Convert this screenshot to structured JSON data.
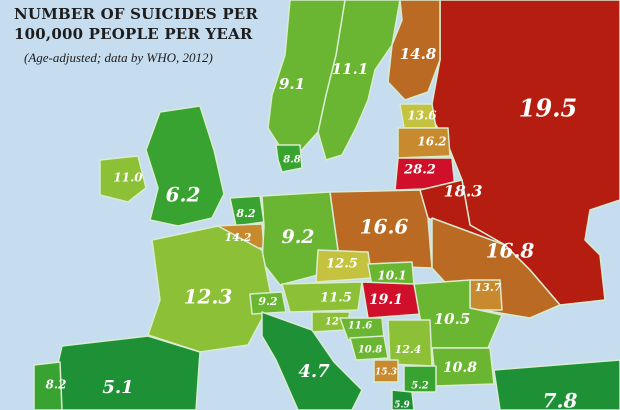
{
  "title": {
    "line1": "NUMBER OF SUICIDES PER",
    "line2": "100,000 PEOPLE PER YEAR",
    "subtitle": "(Age-adjusted; data by WHO, 2012)"
  },
  "colors": {
    "sea": "#c6dcef",
    "border": "#d9ecd0",
    "very_high": "#b51d10",
    "high": "#d0102a",
    "upper": "#ba6a22",
    "mid_upper": "#c88a2e",
    "mid": "#c4c23e",
    "mid_low": "#8cc036",
    "low": "#6ab532",
    "lower": "#38a330",
    "lowest": "#1e9036",
    "gray_land": "#b7b4a6"
  },
  "regions": [
    {
      "name": "Russia",
      "value": "19.5",
      "band": "very_high"
    },
    {
      "name": "Finland",
      "value": "14.8",
      "band": "upper"
    },
    {
      "name": "Sweden",
      "value": "11.1",
      "band": "low"
    },
    {
      "name": "Norway",
      "value": "9.1",
      "band": "low"
    },
    {
      "name": "Estonia",
      "value": "13.6",
      "band": "mid"
    },
    {
      "name": "Latvia",
      "value": "16.2",
      "band": "mid_upper"
    },
    {
      "name": "Lithuania",
      "value": "28.2",
      "band": "high"
    },
    {
      "name": "Belarus",
      "value": "18.3",
      "band": "very_high"
    },
    {
      "name": "Denmark",
      "value": "8.8",
      "band": "lower"
    },
    {
      "name": "United Kingdom",
      "value": "6.2",
      "band": "lower"
    },
    {
      "name": "Ireland",
      "value": "11.0",
      "band": "mid_low"
    },
    {
      "name": "Netherlands",
      "value": "8.2",
      "band": "lower"
    },
    {
      "name": "Belgium",
      "value": "14.2",
      "band": "mid_upper"
    },
    {
      "name": "Germany",
      "value": "9.2",
      "band": "low"
    },
    {
      "name": "Poland",
      "value": "16.6",
      "band": "upper"
    },
    {
      "name": "Ukraine",
      "value": "16.8",
      "band": "upper"
    },
    {
      "name": "Czech Republic",
      "value": "12.5",
      "band": "mid"
    },
    {
      "name": "Slovakia",
      "value": "10.1",
      "band": "low"
    },
    {
      "name": "Moldova",
      "value": "13.7",
      "band": "mid_upper"
    },
    {
      "name": "France",
      "value": "12.3",
      "band": "mid_low"
    },
    {
      "name": "Switzerland",
      "value": "9.2",
      "band": "low"
    },
    {
      "name": "Austria",
      "value": "11.5",
      "band": "mid_low"
    },
    {
      "name": "Hungary",
      "value": "19.1",
      "band": "high"
    },
    {
      "name": "Romania",
      "value": "10.5",
      "band": "low"
    },
    {
      "name": "Slovenia",
      "value": "12",
      "band": "mid_low"
    },
    {
      "name": "Croatia",
      "value": "11.6",
      "band": "low"
    },
    {
      "name": "Bosnia",
      "value": "10.8",
      "band": "low"
    },
    {
      "name": "Serbia",
      "value": "12.4",
      "band": "mid_low"
    },
    {
      "name": "Bulgaria",
      "value": "10.8",
      "band": "low"
    },
    {
      "name": "Montenegro",
      "value": "15.3",
      "band": "mid_upper"
    },
    {
      "name": "Macedonia",
      "value": "5.2",
      "band": "lower"
    },
    {
      "name": "Albania",
      "value": "5.9",
      "band": "lowest"
    },
    {
      "name": "Italy",
      "value": "4.7",
      "band": "lowest"
    },
    {
      "name": "Spain",
      "value": "5.1",
      "band": "lowest"
    },
    {
      "name": "Portugal",
      "value": "8.2",
      "band": "lower"
    },
    {
      "name": "Turkey",
      "value": "7.8",
      "band": "lowest"
    }
  ]
}
